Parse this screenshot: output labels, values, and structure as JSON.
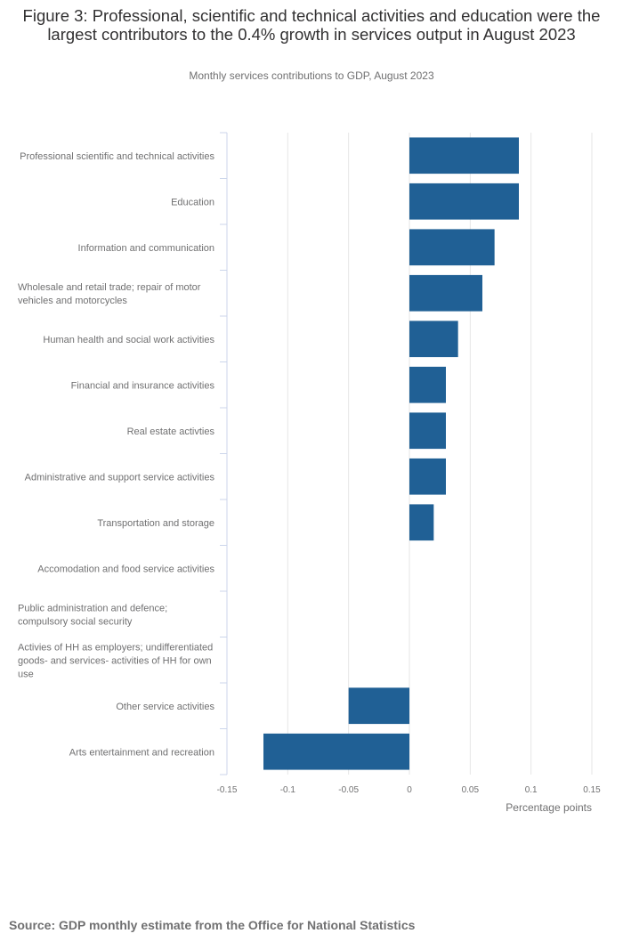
{
  "title": "Figure 3: Professional, scientific and technical activities and education were the largest contributors to the 0.4% growth in services output in August 2023",
  "subtitle": "Monthly services contributions to GDP, August 2023",
  "source": "Source: GDP monthly estimate from the Office for National Statistics",
  "colors": {
    "bar": "#206095",
    "grid": "#e6e6e6",
    "axis_line": "#ccd6eb",
    "label_text": "#707071"
  },
  "chart_data": {
    "type": "bar",
    "orientation": "horizontal",
    "categories": [
      "Professional scientific and technical activities",
      "Education",
      "Information and communication",
      "Wholesale and retail trade; repair of motor vehicles and motorcycles",
      "Human health and social work activities",
      "Financial and insurance activities",
      "Real estate activties",
      "Administrative and support service activities",
      "Transportation and storage",
      "Accomodation and food service activities",
      "Public administration and defence; compulsory social security",
      "Activies of HH as employers; undifferentiated goods- and services- activities of HH for own use",
      "Other service activities",
      "Arts entertainment and recreation"
    ],
    "values": [
      0.09,
      0.09,
      0.07,
      0.06,
      0.04,
      0.03,
      0.03,
      0.03,
      0.02,
      0,
      0,
      0,
      -0.05,
      -0.12
    ],
    "xlabel": "Percentage points",
    "ylabel": "",
    "xlim": [
      -0.15,
      0.15
    ],
    "xticks": [
      -0.15,
      -0.1,
      -0.05,
      0,
      0.05,
      0.1,
      0.15
    ],
    "xtick_labels": [
      "-0.15",
      "-0.1",
      "-0.05",
      "0",
      "0.05",
      "0.1",
      "0.15"
    ],
    "grid": true,
    "legend": "none"
  }
}
